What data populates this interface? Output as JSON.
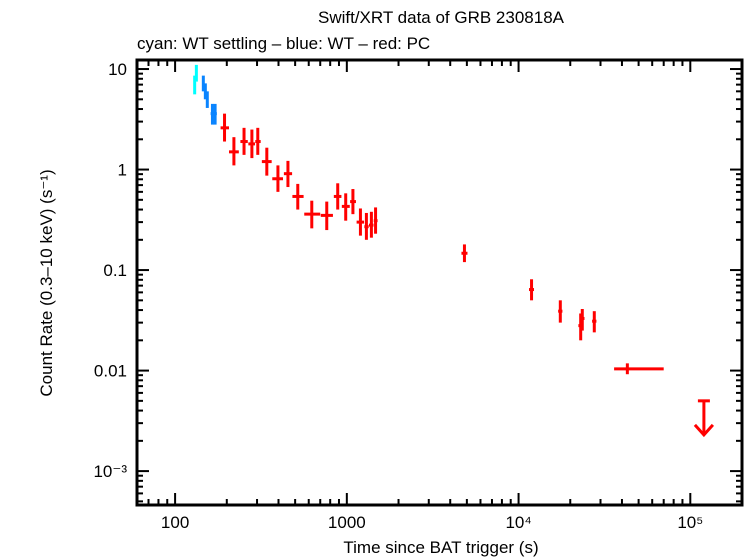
{
  "chart_data": {
    "type": "scatter",
    "title": "Swift/XRT data of GRB 230818A",
    "subtitle": "cyan: WT settling – blue: WT – red: PC",
    "xlabel": "Time since BAT trigger (s)",
    "ylabel": "Count Rate (0.3–10 keV) (s⁻¹)",
    "xscale": "log",
    "yscale": "log",
    "xlim": [
      60,
      200000
    ],
    "ylim": [
      0.00046,
      12.3
    ],
    "grid": false,
    "x_ticks": [
      {
        "value": 100,
        "label": "100"
      },
      {
        "value": 1000,
        "label": "1000"
      },
      {
        "value": 10000,
        "label": "10⁴"
      },
      {
        "value": 100000,
        "label": "10⁵"
      }
    ],
    "y_ticks": [
      {
        "value": 10,
        "label": "10"
      },
      {
        "value": 1,
        "label": "1"
      },
      {
        "value": 0.1,
        "label": "0.1"
      },
      {
        "value": 0.01,
        "label": "0.01"
      },
      {
        "value": 0.001,
        "label": "10⁻³"
      }
    ],
    "series": [
      {
        "name": "WT settling",
        "color": "#00ffff",
        "points": [
          {
            "x": 133,
            "xlo": 131,
            "xhi": 135,
            "y": 9.2,
            "ylo": 7.5,
            "yhi": 11.0
          },
          {
            "x": 130,
            "xlo": 128,
            "xhi": 132,
            "y": 7.0,
            "ylo": 5.6,
            "yhi": 8.6
          }
        ]
      },
      {
        "name": "WT",
        "color": "#0a84ff",
        "points": [
          {
            "x": 146,
            "xlo": 144,
            "xhi": 148,
            "y": 7.2,
            "ylo": 6.0,
            "yhi": 8.6
          },
          {
            "x": 150,
            "xlo": 148,
            "xhi": 152,
            "y": 6.0,
            "ylo": 5.0,
            "yhi": 7.2
          },
          {
            "x": 154,
            "xlo": 152,
            "xhi": 156,
            "y": 5.0,
            "ylo": 4.1,
            "yhi": 6.0
          },
          {
            "x": 165,
            "xlo": 161,
            "xhi": 169,
            "y": 3.6,
            "ylo": 2.8,
            "yhi": 4.5
          },
          {
            "x": 171,
            "xlo": 168,
            "xhi": 175,
            "y": 3.6,
            "ylo": 2.8,
            "yhi": 4.5
          }
        ]
      },
      {
        "name": "PC",
        "color": "#ff0000",
        "points": [
          {
            "x": 194,
            "xlo": 184,
            "xhi": 206,
            "y": 2.6,
            "ylo": 1.9,
            "yhi": 3.6
          },
          {
            "x": 220,
            "xlo": 206,
            "xhi": 235,
            "y": 1.5,
            "ylo": 1.1,
            "yhi": 2.1
          },
          {
            "x": 252,
            "xlo": 240,
            "xhi": 265,
            "y": 1.9,
            "ylo": 1.4,
            "yhi": 2.6
          },
          {
            "x": 280,
            "xlo": 267,
            "xhi": 292,
            "y": 1.8,
            "ylo": 1.3,
            "yhi": 2.5
          },
          {
            "x": 303,
            "xlo": 293,
            "xhi": 315,
            "y": 1.9,
            "ylo": 1.4,
            "yhi": 2.6
          },
          {
            "x": 342,
            "xlo": 320,
            "xhi": 365,
            "y": 1.2,
            "ylo": 0.87,
            "yhi": 1.65
          },
          {
            "x": 397,
            "xlo": 368,
            "xhi": 425,
            "y": 0.81,
            "ylo": 0.6,
            "yhi": 1.1
          },
          {
            "x": 454,
            "xlo": 430,
            "xhi": 480,
            "y": 0.91,
            "ylo": 0.67,
            "yhi": 1.22
          },
          {
            "x": 518,
            "xlo": 482,
            "xhi": 560,
            "y": 0.54,
            "ylo": 0.4,
            "yhi": 0.72
          },
          {
            "x": 625,
            "xlo": 565,
            "xhi": 700,
            "y": 0.36,
            "ylo": 0.26,
            "yhi": 0.49
          },
          {
            "x": 764,
            "xlo": 705,
            "xhi": 830,
            "y": 0.35,
            "ylo": 0.25,
            "yhi": 0.48
          },
          {
            "x": 885,
            "xlo": 840,
            "xhi": 930,
            "y": 0.54,
            "ylo": 0.4,
            "yhi": 0.73
          },
          {
            "x": 985,
            "xlo": 935,
            "xhi": 1040,
            "y": 0.43,
            "ylo": 0.31,
            "yhi": 0.58
          },
          {
            "x": 1085,
            "xlo": 1045,
            "xhi": 1130,
            "y": 0.48,
            "ylo": 0.36,
            "yhi": 0.64
          },
          {
            "x": 1200,
            "xlo": 1140,
            "xhi": 1260,
            "y": 0.3,
            "ylo": 0.22,
            "yhi": 0.41
          },
          {
            "x": 1300,
            "xlo": 1265,
            "xhi": 1340,
            "y": 0.27,
            "ylo": 0.2,
            "yhi": 0.37
          },
          {
            "x": 1390,
            "xlo": 1345,
            "xhi": 1430,
            "y": 0.28,
            "ylo": 0.21,
            "yhi": 0.38
          },
          {
            "x": 1470,
            "xlo": 1435,
            "xhi": 1510,
            "y": 0.31,
            "ylo": 0.23,
            "yhi": 0.42
          },
          {
            "x": 4840,
            "xlo": 4650,
            "xhi": 5040,
            "y": 0.147,
            "ylo": 0.12,
            "yhi": 0.18
          },
          {
            "x": 11900,
            "xlo": 11500,
            "xhi": 12300,
            "y": 0.064,
            "ylo": 0.05,
            "yhi": 0.081
          },
          {
            "x": 17500,
            "xlo": 17000,
            "xhi": 18000,
            "y": 0.039,
            "ylo": 0.03,
            "yhi": 0.05
          },
          {
            "x": 23000,
            "xlo": 22300,
            "xhi": 23500,
            "y": 0.028,
            "ylo": 0.02,
            "yhi": 0.037
          },
          {
            "x": 23500,
            "xlo": 23000,
            "xhi": 24200,
            "y": 0.033,
            "ylo": 0.025,
            "yhi": 0.041
          },
          {
            "x": 27600,
            "xlo": 26800,
            "xhi": 28400,
            "y": 0.031,
            "ylo": 0.024,
            "yhi": 0.039
          },
          {
            "x": 43000,
            "xlo": 36000,
            "xhi": 70000,
            "y": 0.0104,
            "ylo": 0.0092,
            "yhi": 0.0118
          }
        ],
        "upper_limits": [
          {
            "x": 120000,
            "y": 0.005
          }
        ]
      }
    ]
  }
}
